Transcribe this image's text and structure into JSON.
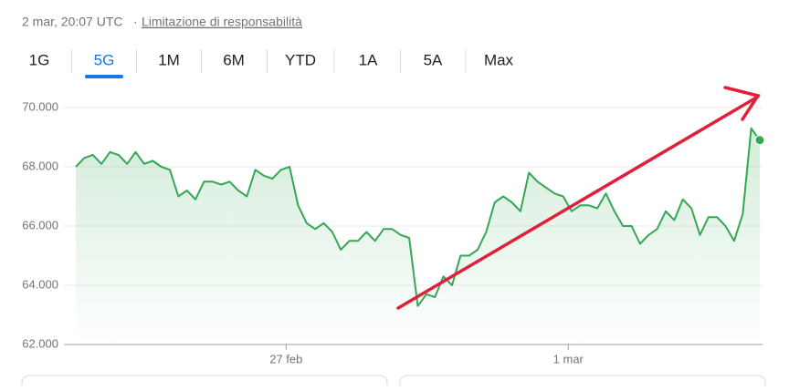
{
  "header": {
    "timestamp": "2 mar, 20:07 UTC",
    "separator": "·",
    "disclaimer": "Limitazione di responsabilità"
  },
  "tabs": {
    "items": [
      "1G",
      "5G",
      "1M",
      "6M",
      "YTD",
      "1A",
      "5A",
      "Max"
    ],
    "active": 1
  },
  "chart_data": {
    "type": "line",
    "xlim": [
      0,
      80
    ],
    "xticks": [
      {
        "value": 24.6,
        "label": "27 feb"
      },
      {
        "value": 57.6,
        "label": "1 mar"
      }
    ],
    "ylim": [
      62000,
      70000
    ],
    "yticks": [
      {
        "value": 62000,
        "label": "62.000"
      },
      {
        "value": 64000,
        "label": "64.000"
      },
      {
        "value": 66000,
        "label": "66.000"
      },
      {
        "value": 68000,
        "label": "68.000"
      },
      {
        "value": 70000,
        "label": "70.000"
      }
    ],
    "grid": true,
    "series": [
      {
        "color": "#34a853",
        "values": [
          68000,
          68300,
          68400,
          68100,
          68500,
          68400,
          68100,
          68500,
          68100,
          68200,
          68000,
          67900,
          67000,
          67200,
          66900,
          67500,
          67500,
          67400,
          67500,
          67200,
          67000,
          67900,
          67700,
          67600,
          67900,
          68000,
          66700,
          66100,
          65900,
          66100,
          65800,
          65200,
          65500,
          65500,
          65800,
          65500,
          65900,
          65900,
          65700,
          65600,
          63300,
          63700,
          63600,
          64300,
          64000,
          65000,
          65000,
          65200,
          65800,
          66800,
          67000,
          66800,
          66500,
          67800,
          67500,
          67300,
          67100,
          67000,
          66500,
          66700,
          66700,
          66600,
          67100,
          66500,
          66000,
          66000,
          65400,
          65700,
          65900,
          66500,
          66200,
          66900,
          66600,
          65700,
          66300,
          66300,
          66000,
          65500,
          66400,
          69300,
          68900
        ]
      }
    ]
  }
}
